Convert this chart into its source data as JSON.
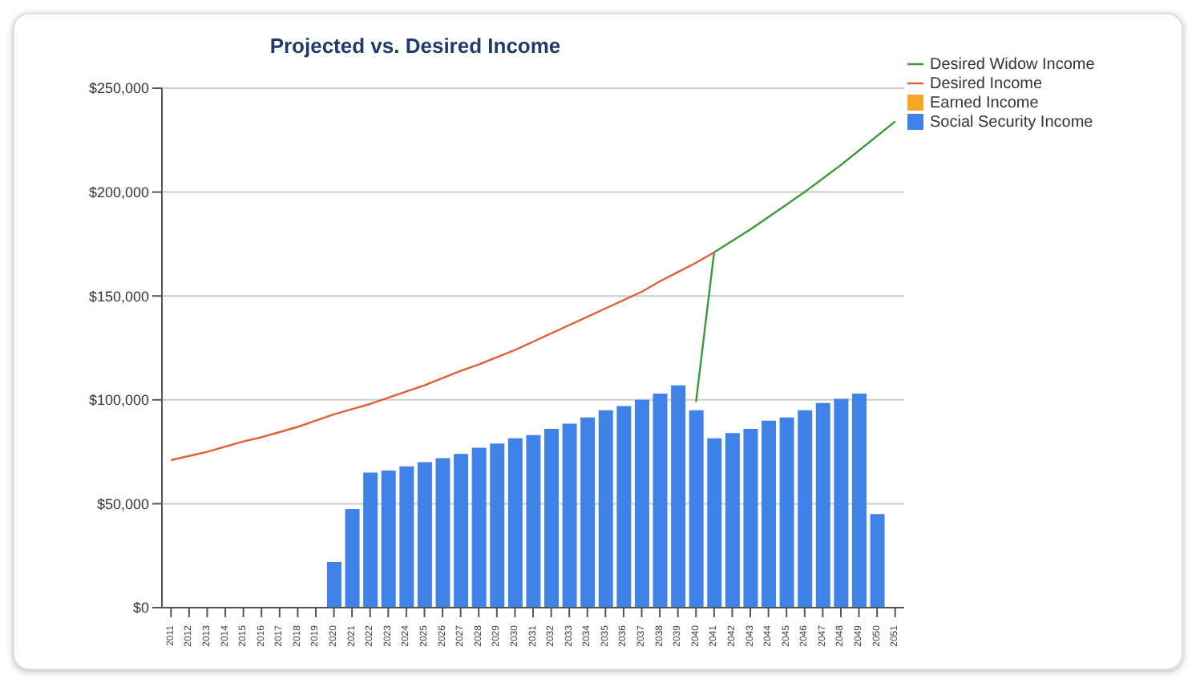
{
  "chart_data": {
    "type": "bar",
    "title": "Projected vs. Desired Income",
    "categories": [
      "2011",
      "2012",
      "2013",
      "2014",
      "2015",
      "2016",
      "2017",
      "2018",
      "2019",
      "2020",
      "2021",
      "2022",
      "2023",
      "2024",
      "2025",
      "2026",
      "2027",
      "2028",
      "2029",
      "2030",
      "2031",
      "2032",
      "2033",
      "2034",
      "2035",
      "2036",
      "2037",
      "2038",
      "2039",
      "2040",
      "2041",
      "2042",
      "2043",
      "2044",
      "2045",
      "2046",
      "2047",
      "2048",
      "2049",
      "2050",
      "2051"
    ],
    "series": [
      {
        "name": "Desired Widow Income",
        "type": "line",
        "color": "#3a9a3a",
        "values": [
          null,
          null,
          null,
          null,
          null,
          null,
          null,
          null,
          null,
          null,
          null,
          null,
          null,
          null,
          null,
          null,
          null,
          null,
          null,
          null,
          null,
          null,
          null,
          null,
          null,
          null,
          null,
          null,
          null,
          99000,
          171000,
          176500,
          182000,
          188000,
          194000,
          200000,
          206500,
          213000,
          220000,
          227000,
          234000
        ]
      },
      {
        "name": "Desired Income",
        "type": "line",
        "color": "#e0603a",
        "values": [
          71000,
          73000,
          75000,
          77500,
          80000,
          82000,
          84500,
          87000,
          90000,
          93000,
          95500,
          98000,
          101000,
          104000,
          107000,
          110500,
          114000,
          117000,
          120500,
          124000,
          128000,
          132000,
          136000,
          140000,
          144000,
          148000,
          152000,
          157000,
          161500,
          166000,
          171000,
          null,
          null,
          null,
          null,
          null,
          null,
          null,
          null,
          null,
          null
        ]
      },
      {
        "name": "Earned Income",
        "color": "#f5a623",
        "values": [
          0,
          0,
          0,
          0,
          0,
          0,
          0,
          0,
          0,
          0,
          0,
          0,
          0,
          0,
          0,
          0,
          0,
          0,
          0,
          0,
          0,
          0,
          0,
          0,
          0,
          0,
          0,
          0,
          0,
          0,
          0,
          0,
          0,
          0,
          0,
          0,
          0,
          0,
          0,
          0,
          0
        ]
      },
      {
        "name": "Social Security Income",
        "color": "#3f82e8",
        "values": [
          0,
          0,
          0,
          0,
          0,
          0,
          0,
          0,
          0,
          22000,
          47500,
          65000,
          66000,
          68000,
          70000,
          72000,
          74000,
          77000,
          79000,
          81500,
          83000,
          86000,
          88500,
          91500,
          95000,
          97000,
          100000,
          103000,
          107000,
          95000,
          81500,
          84000,
          86000,
          90000,
          91500,
          95000,
          98500,
          100500,
          103000,
          45000,
          null
        ]
      }
    ],
    "stacked": true,
    "ylim": [
      0,
      250000
    ],
    "yticks": [
      {
        "value": 0,
        "label": "$0"
      },
      {
        "value": 50000,
        "label": "$50,000"
      },
      {
        "value": 100000,
        "label": "$100,000"
      },
      {
        "value": 150000,
        "label": "$150,000"
      },
      {
        "value": 200000,
        "label": "$200,000"
      },
      {
        "value": 250000,
        "label": "$250,000"
      }
    ],
    "grid": "y",
    "legend": "top right",
    "marker": "none",
    "line_style": "solid"
  }
}
